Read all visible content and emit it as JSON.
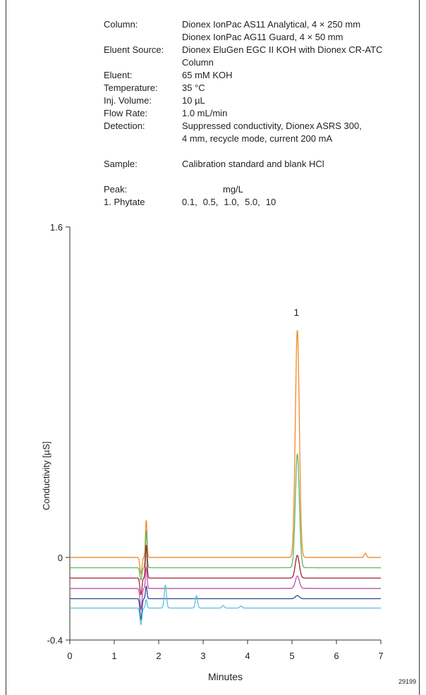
{
  "conditions": [
    {
      "label": "Column:",
      "value": "Dionex IonPac AS11 Analytical, 4 × 250 mm"
    },
    {
      "label": "",
      "value": "Dionex IonPac AG11 Guard, 4 × 50 mm"
    },
    {
      "label": "Eluent Source:",
      "value": "Dionex EluGen EGC II KOH with Dionex CR-ATC Column"
    },
    {
      "label": "Eluent:",
      "value": "65 mM KOH"
    },
    {
      "label": "Temperature:",
      "value": "35 °C"
    },
    {
      "label": "Inj. Volume:",
      "value": "10 µL"
    },
    {
      "label": "Flow Rate:",
      "value": "1.0 mL/min"
    },
    {
      "label": "Detection:",
      "value": "Suppressed conductivity, Dionex ASRS 300,"
    },
    {
      "label": "",
      "value": "4 mm, recycle mode, current 200 mA"
    }
  ],
  "sample": {
    "label": "Sample:",
    "value": "Calibration standard and blank HCl"
  },
  "peaks": {
    "label": "Peak:",
    "unit": "mg/L",
    "name": "1. Phytate",
    "concentrations": [
      "0.1,",
      "0.5,",
      "1.0,",
      "5.0,",
      "10"
    ]
  },
  "figure_id": "29199",
  "chart_data": {
    "type": "line",
    "xlabel": "Minutes",
    "ylabel": "Conductivity [µS]",
    "xlim": [
      0,
      7
    ],
    "ylim": [
      -0.4,
      1.6
    ],
    "xticks": [
      0,
      1,
      2,
      3,
      4,
      5,
      6,
      7
    ],
    "yticks": [
      -0.4,
      0,
      1.6
    ],
    "peak_label": {
      "text": "1",
      "x": 5.1,
      "y": 1.17
    },
    "series": [
      {
        "color": "#f08a24",
        "baseline": 0,
        "peak_height": 1.1,
        "system_peak": [
          0.18,
          -0.08
        ],
        "minor": [
          [
            6.65,
            0.02
          ]
        ]
      },
      {
        "color": "#5cb85c",
        "baseline": -0.05,
        "peak_height": 0.55,
        "system_peak": [
          0.18,
          -0.06
        ],
        "minor": []
      },
      {
        "color": "#a0203a",
        "baseline": -0.1,
        "peak_height": 0.11,
        "system_peak": [
          0.16,
          -0.08
        ],
        "minor": []
      },
      {
        "color": "#c050a8",
        "baseline": -0.15,
        "peak_height": 0.06,
        "system_peak": [
          0.1,
          -0.1
        ],
        "minor": []
      },
      {
        "color": "#2a4a9a",
        "baseline": -0.2,
        "peak_height": 0.015,
        "system_peak": [
          0.06,
          -0.1
        ],
        "minor": []
      },
      {
        "color": "#5bc0de",
        "baseline": -0.245,
        "peak_height": 0,
        "system_peak": [
          0.04,
          -0.08
        ],
        "minor": [
          [
            2.15,
            0.11
          ],
          [
            2.85,
            0.06
          ],
          [
            3.45,
            0.012
          ],
          [
            3.85,
            0.01
          ]
        ]
      }
    ]
  }
}
